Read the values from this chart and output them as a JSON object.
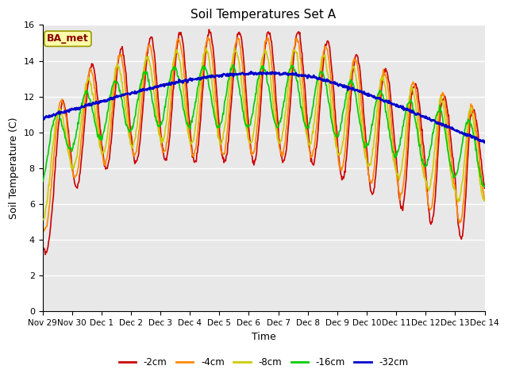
{
  "title": "Soil Temperatures Set A",
  "xlabel": "Time",
  "ylabel": "Soil Temperature (C)",
  "annotation": "BA_met",
  "ylim": [
    0,
    16
  ],
  "yticks": [
    0,
    2,
    4,
    6,
    8,
    10,
    12,
    14,
    16
  ],
  "xlim": [
    0,
    15
  ],
  "figsize": [
    6.4,
    4.8
  ],
  "dpi": 100,
  "series": {
    "-2cm": {
      "color": "#cc0000",
      "lw": 1.2
    },
    "-4cm": {
      "color": "#ff8800",
      "lw": 1.2
    },
    "-8cm": {
      "color": "#cccc00",
      "lw": 1.2
    },
    "-16cm": {
      "color": "#00cc00",
      "lw": 1.2
    },
    "-32cm": {
      "color": "#0000cc",
      "lw": 1.8
    }
  },
  "fig_facecolor": "#ffffff",
  "ax_facecolor": "#e8e8e8",
  "grid_color": "#ffffff",
  "xtick_labels": [
    "Nov 29",
    "Nov 30",
    "Dec 1",
    "Dec 2",
    "Dec 3",
    "Dec 4",
    "Dec 5",
    "Dec 6",
    "Dec 7",
    "Dec 8",
    "Dec 9",
    "Dec 10",
    "Dec 11",
    "Dec 12",
    "Dec 13",
    "Dec 14"
  ],
  "legend_labels": [
    "-2cm",
    "-4cm",
    "-8cm",
    "-16cm",
    "-32cm"
  ],
  "legend_colors": [
    "#cc0000",
    "#ff8800",
    "#cccc00",
    "#00cc00",
    "#0000cc"
  ]
}
